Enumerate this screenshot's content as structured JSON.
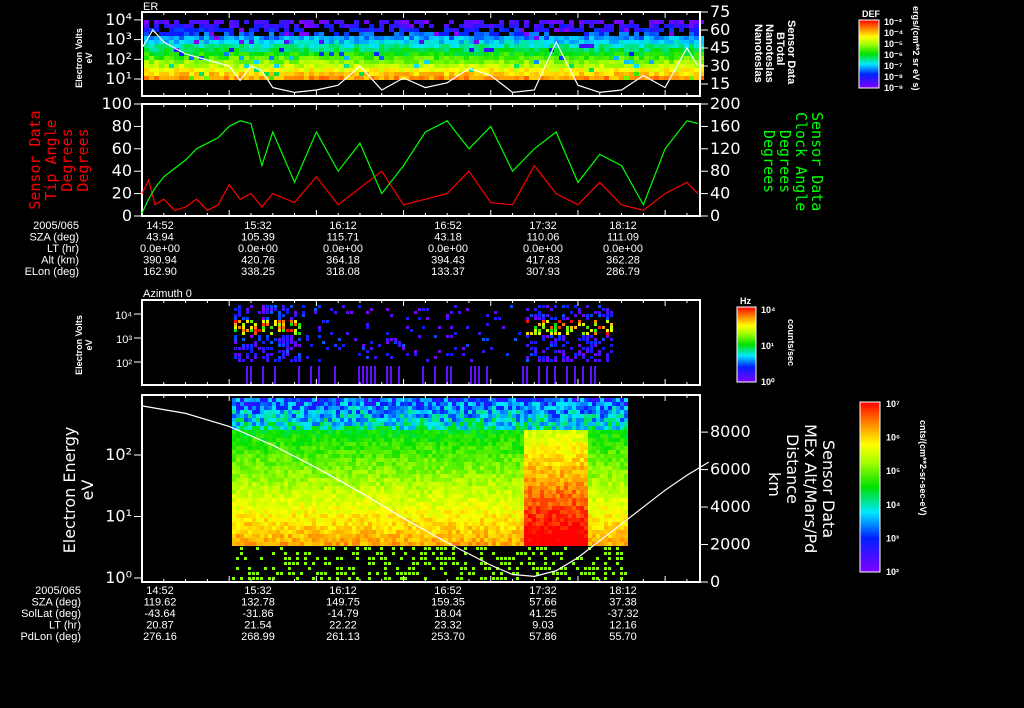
{
  "chart_data": [
    {
      "type": "heatmap",
      "title": "ER",
      "ylabel": "Electron Volts",
      "yunit": "eV",
      "yticks": [
        "10^1",
        "10^2",
        "10^3",
        "10^4"
      ],
      "right_axis": {
        "label": [
          "Sensor Data",
          "BTotal",
          "Nanoteslas",
          "Nanoteslas"
        ],
        "ticks": [
          15,
          30,
          45,
          60,
          75
        ],
        "range": [
          5,
          75
        ]
      },
      "colorbar": {
        "title": "DEF",
        "ticks": [
          "10^-3",
          "10^-4",
          "10^-5",
          "10^-6",
          "10^-7",
          "10^-8",
          "10^-9"
        ],
        "unit": "ergs/(cm**2 sr eV s)"
      },
      "line_series": {
        "name": "BTotal",
        "color": "#ffffff",
        "x_minutes_from_1452": [
          0,
          5,
          10,
          15,
          20,
          30,
          40,
          45,
          50,
          55,
          60,
          70,
          80,
          90,
          100,
          110,
          120,
          130,
          140,
          150,
          160,
          170,
          180,
          190,
          200,
          210,
          220,
          230,
          240,
          250,
          255
        ],
        "values": [
          45,
          60,
          50,
          45,
          40,
          35,
          30,
          18,
          30,
          26,
          12,
          8,
          10,
          14,
          30,
          10,
          20,
          12,
          16,
          28,
          22,
          8,
          10,
          50,
          14,
          8,
          10,
          22,
          12,
          45,
          30
        ]
      }
    },
    {
      "type": "line",
      "ylabel_left": [
        "Sensor Data",
        "Tip Angle",
        "Degrees",
        "Degrees"
      ],
      "ylabel_right": [
        "Sensor Data",
        "Clock Angle",
        "Degrees",
        "Degrees"
      ],
      "ylim_left": [
        0,
        100
      ],
      "ylim_right": [
        0,
        200
      ],
      "yticks_left": [
        0,
        20,
        40,
        60,
        80,
        100
      ],
      "yticks_right": [
        0,
        40,
        80,
        120,
        160,
        200
      ],
      "series": [
        {
          "name": "Tip Angle",
          "color": "#ff0000",
          "x_minutes_from_1452": [
            0,
            3,
            6,
            10,
            15,
            20,
            25,
            30,
            35,
            40,
            45,
            50,
            55,
            60,
            70,
            80,
            90,
            100,
            110,
            120,
            130,
            140,
            150,
            160,
            170,
            180,
            190,
            200,
            210,
            220,
            230,
            240,
            250,
            255
          ],
          "values": [
            20,
            32,
            10,
            15,
            5,
            8,
            15,
            5,
            10,
            28,
            15,
            20,
            8,
            20,
            12,
            35,
            10,
            25,
            40,
            10,
            15,
            20,
            40,
            12,
            10,
            45,
            20,
            10,
            30,
            10,
            5,
            20,
            30,
            20
          ]
        },
        {
          "name": "Clock Angle",
          "color": "#00ff00",
          "x_minutes_from_1452": [
            0,
            3,
            6,
            10,
            15,
            20,
            25,
            30,
            35,
            40,
            45,
            50,
            55,
            60,
            70,
            80,
            90,
            100,
            110,
            120,
            130,
            140,
            150,
            160,
            170,
            180,
            190,
            200,
            210,
            220,
            230,
            240,
            250,
            255
          ],
          "values": [
            5,
            30,
            50,
            70,
            85,
            100,
            120,
            130,
            140,
            160,
            170,
            165,
            90,
            150,
            60,
            150,
            80,
            130,
            40,
            90,
            150,
            170,
            120,
            160,
            80,
            120,
            150,
            60,
            110,
            90,
            20,
            120,
            170,
            165
          ]
        }
      ]
    },
    {
      "type": "heatmap",
      "title": "Azimuth 0",
      "ylabel": "Electron Volts",
      "yunit": "eV",
      "yticks": [
        "10^2",
        "10^3",
        "10^4"
      ],
      "colorbar": {
        "title": "Hz",
        "ticks": [
          "10^0",
          "10^1",
          "10^4"
        ],
        "unit": "counts/sec"
      }
    },
    {
      "type": "heatmap",
      "ylabel": "Electron Energy",
      "yunit": "eV",
      "yticks": [
        "10^0",
        "10^1",
        "10^2"
      ],
      "right_axis": {
        "label": [
          "Sensor Data",
          "MEx Alt/Mars/Pd",
          "Distance",
          "km"
        ],
        "ticks": [
          0,
          2000,
          4000,
          6000,
          8000
        ],
        "range": [
          0,
          9500
        ]
      },
      "colorbar": {
        "ticks": [
          "10^2",
          "10^3",
          "10^4",
          "10^5",
          "10^6",
          "10^7"
        ],
        "unit": "cnts/(cm**2-sr-sec-eV)"
      },
      "line_series": {
        "name": "MEx Altitude",
        "color": "#ffffff",
        "x_minutes_from_1452": [
          0,
          20,
          40,
          60,
          80,
          100,
          120,
          140,
          150,
          160,
          170,
          180,
          190,
          200,
          210,
          220,
          230,
          240,
          250,
          260
        ],
        "values": [
          9400,
          9000,
          8300,
          7300,
          6100,
          4800,
          3400,
          2100,
          1500,
          900,
          400,
          300,
          600,
          1300,
          2200,
          3100,
          4000,
          4900,
          5700,
          6400
        ]
      }
    }
  ],
  "top_annotations": {
    "rows": [
      {
        "label": "2005/065",
        "values": [
          "14:52",
          "15:32",
          "16:12",
          "16:52",
          "17:32",
          "18:12"
        ]
      },
      {
        "label": "SZA (deg)",
        "values": [
          "43.94",
          "105.39",
          "115.71",
          "43.18",
          "110.06",
          "111.09"
        ]
      },
      {
        "label": "LT (hr)",
        "values": [
          "0.0e+00",
          "0.0e+00",
          "0.0e+00",
          "0.0e+00",
          "0.0e+00",
          "0.0e+00"
        ]
      },
      {
        "label": "Alt (km)",
        "values": [
          "390.94",
          "420.76",
          "364.18",
          "394.43",
          "417.83",
          "362.28"
        ]
      },
      {
        "label": "ELon (deg)",
        "values": [
          "162.90",
          "338.25",
          "318.08",
          "133.37",
          "307.93",
          "286.79"
        ]
      }
    ]
  },
  "bottom_annotations": {
    "rows": [
      {
        "label": "2005/065",
        "values": [
          "14:52",
          "15:32",
          "16:12",
          "16:52",
          "17:32",
          "18:12"
        ]
      },
      {
        "label": "SZA (deg)",
        "values": [
          "119.62",
          "132.78",
          "149.75",
          "159.35",
          "57.66",
          "37.38"
        ]
      },
      {
        "label": "SolLat (deg)",
        "values": [
          "-43.64",
          "-31.86",
          "-14.79",
          "18.04",
          "41.25",
          "-37.32"
        ]
      },
      {
        "label": "LT (hr)",
        "values": [
          "20.87",
          "21.54",
          "22.22",
          "23.32",
          "9.03",
          "12.16"
        ]
      },
      {
        "label": "PdLon (deg)",
        "values": [
          "276.16",
          "268.99",
          "261.13",
          "253.70",
          "57.86",
          "55.70"
        ]
      }
    ]
  },
  "colors": {
    "tip": "#ff0000",
    "clock": "#00ff00",
    "axis": "#ffffff",
    "bg": "#000000"
  }
}
